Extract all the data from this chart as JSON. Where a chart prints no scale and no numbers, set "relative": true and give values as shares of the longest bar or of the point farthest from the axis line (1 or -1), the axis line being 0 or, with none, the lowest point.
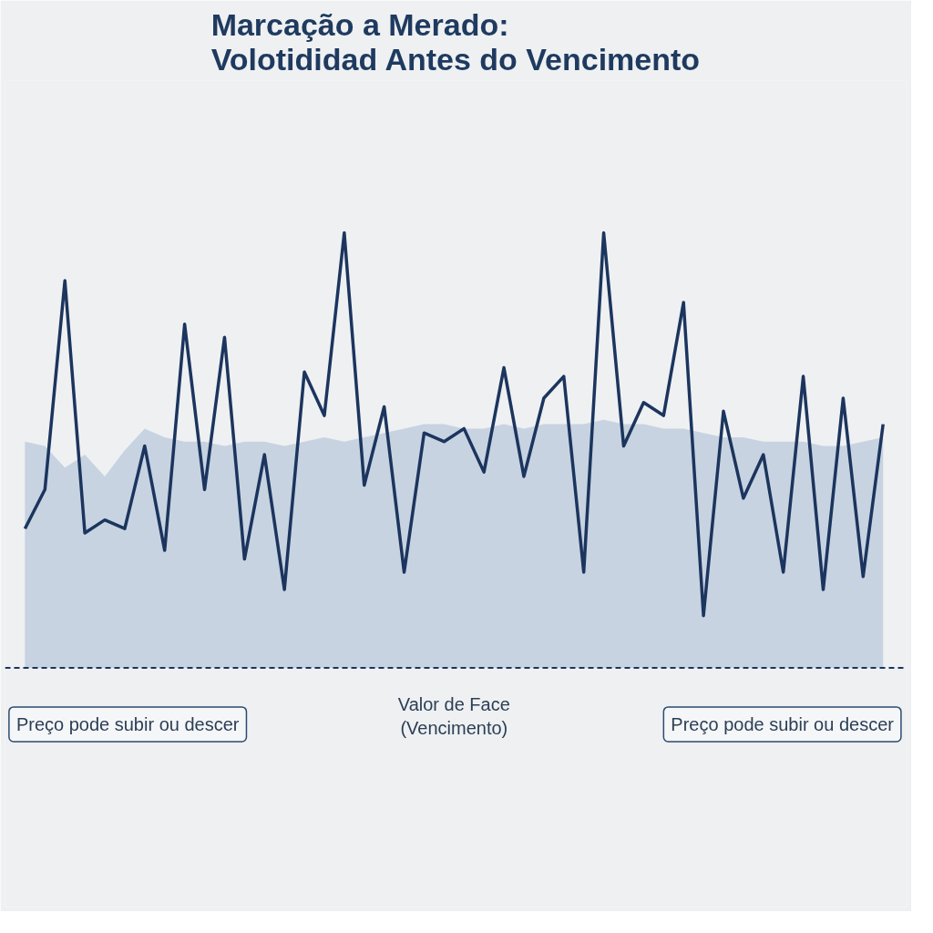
{
  "chart_data": {
    "type": "line",
    "relative": true,
    "title": "Marcação a Merado:\nVolotididad Antes do Vencimento",
    "categories": [
      null,
      null,
      null,
      null,
      null,
      null,
      null,
      null,
      null,
      null,
      null,
      null,
      null,
      null,
      null,
      null,
      null,
      null,
      null,
      null,
      null,
      null,
      null,
      null,
      null,
      null,
      null,
      null,
      null,
      null,
      null,
      null,
      null,
      null,
      null,
      null,
      null,
      null,
      null,
      null,
      null,
      null,
      null,
      null
    ],
    "series": [
      {
        "type": "area",
        "color": "#7e9ec4",
        "values": [
          0.52,
          0.51,
          0.46,
          0.49,
          0.44,
          0.5,
          0.55,
          0.53,
          0.52,
          0.52,
          0.51,
          0.52,
          0.52,
          0.51,
          0.52,
          0.53,
          0.52,
          0.53,
          0.54,
          0.55,
          0.56,
          0.56,
          0.55,
          0.55,
          0.56,
          0.55,
          0.56,
          0.56,
          0.56,
          0.57,
          0.56,
          0.56,
          0.55,
          0.55,
          0.54,
          0.53,
          0.53,
          0.52,
          0.52,
          0.52,
          0.51,
          0.51,
          0.52,
          0.53
        ]
      },
      {
        "color": "#1c355e",
        "values": [
          0.32,
          0.41,
          0.89,
          0.31,
          0.34,
          0.32,
          0.51,
          0.27,
          0.79,
          0.41,
          0.76,
          0.25,
          0.49,
          0.18,
          0.68,
          0.58,
          1.0,
          0.42,
          0.6,
          0.22,
          0.54,
          0.52,
          0.55,
          0.45,
          0.69,
          0.44,
          0.62,
          0.67,
          0.22,
          1.0,
          0.51,
          0.61,
          0.58,
          0.84,
          0.12,
          0.59,
          0.39,
          0.49,
          0.22,
          0.67,
          0.18,
          0.62,
          0.21,
          0.56
        ]
      }
    ],
    "ref_lines": [
      {
        "axis": "y",
        "value": 0,
        "label": "Valor de Face\n(Vencimento)",
        "color": "#1c355e",
        "line_style": "dashed"
      }
    ],
    "annotations": [
      "Preço pode subir ou descer",
      "Preço pode subir ou descer"
    ],
    "grid": false
  }
}
